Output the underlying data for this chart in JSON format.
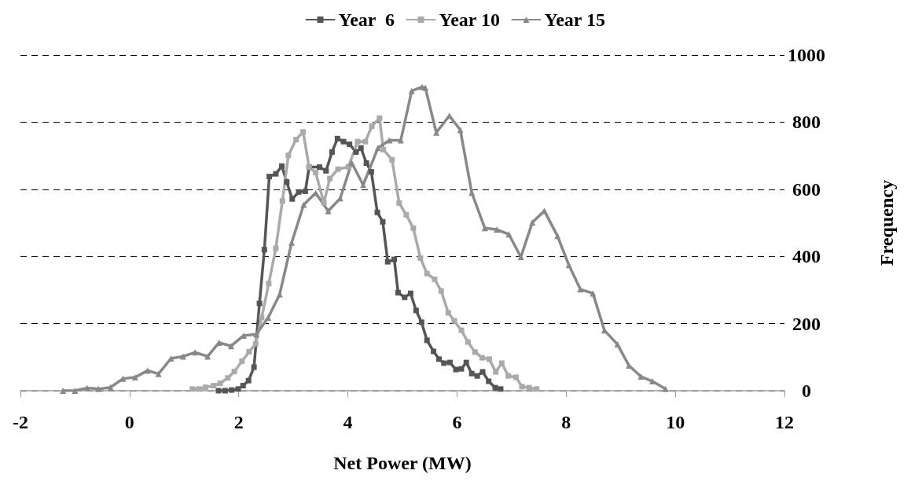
{
  "chart_data": {
    "type": "line",
    "xlabel": "Net Power (MW)",
    "ylabel": "Frequency",
    "xlim": [
      -2,
      12
    ],
    "xticks": [
      -2,
      0,
      2,
      4,
      6,
      8,
      10,
      12
    ],
    "ylim": [
      0,
      1000
    ],
    "yticks": [
      0,
      200,
      400,
      600,
      800,
      1000
    ],
    "grid": "y",
    "legend": "top",
    "line_style": "solid",
    "series": [
      {
        "name": "Year  6",
        "color": "#555555",
        "marker": "square",
        "x": [
          1.63,
          1.75,
          1.87,
          1.99,
          2.08,
          2.18,
          2.28,
          2.38,
          2.47,
          2.56,
          2.68,
          2.79,
          2.88,
          2.98,
          3.1,
          3.22,
          3.29,
          3.48,
          3.6,
          3.71,
          3.81,
          3.92,
          4.03,
          4.15,
          4.24,
          4.34,
          4.43,
          4.54,
          4.64,
          4.73,
          4.85,
          4.92,
          5.04,
          5.15,
          5.25,
          5.35,
          5.45,
          5.57,
          5.67,
          5.76,
          5.87,
          5.98,
          6.08,
          6.17,
          6.27,
          6.37,
          6.47,
          6.58,
          6.7,
          6.8
        ],
        "values": [
          0,
          0,
          2,
          5,
          15,
          30,
          70,
          260,
          420,
          638,
          646,
          669,
          622,
          571,
          592,
          594,
          666,
          666,
          655,
          711,
          751,
          742,
          734,
          711,
          723,
          678,
          652,
          531,
          503,
          384,
          391,
          292,
          278,
          290,
          239,
          204,
          150,
          117,
          94,
          82,
          84,
          63,
          65,
          84,
          51,
          44,
          56,
          28,
          9,
          5
        ]
      },
      {
        "name": "Year 10",
        "color": "#aaaaaa",
        "marker": "square",
        "x": [
          1.15,
          1.27,
          1.39,
          1.54,
          1.66,
          1.8,
          1.92,
          2.06,
          2.19,
          2.31,
          2.42,
          2.55,
          2.68,
          2.8,
          2.91,
          3.05,
          3.18,
          3.29,
          3.41,
          3.56,
          3.67,
          3.82,
          4.01,
          4.18,
          4.32,
          4.44,
          4.58,
          4.65,
          4.81,
          4.94,
          5.07,
          5.2,
          5.33,
          5.45,
          5.59,
          5.71,
          5.84,
          5.95,
          6.08,
          6.2,
          6.33,
          6.46,
          6.59,
          6.71,
          6.82,
          6.94,
          7.08,
          7.19,
          7.32,
          7.46
        ],
        "values": [
          5,
          5,
          10,
          15,
          22,
          38,
          57,
          88,
          116,
          139,
          218,
          319,
          424,
          565,
          701,
          748,
          771,
          666,
          650,
          560,
          632,
          660,
          667,
          742,
          742,
          788,
          812,
          718,
          688,
          559,
          524,
          484,
          395,
          349,
          332,
          297,
          232,
          208,
          180,
          145,
          115,
          98,
          94,
          56,
          82,
          44,
          40,
          12,
          9,
          5
        ]
      },
      {
        "name": "Year 15",
        "color": "#888888",
        "marker": "triangle",
        "x": [
          -1.22,
          -1.0,
          -0.78,
          -0.57,
          -0.35,
          -0.12,
          0.1,
          0.33,
          0.53,
          0.76,
          0.98,
          1.2,
          1.43,
          1.64,
          1.86,
          2.09,
          2.32,
          2.54,
          2.75,
          2.97,
          3.19,
          3.41,
          3.64,
          3.86,
          4.07,
          4.28,
          4.55,
          4.76,
          4.97,
          5.17,
          5.36,
          5.42,
          5.62,
          5.86,
          6.06,
          6.27,
          6.51,
          6.73,
          6.95,
          7.17,
          7.38,
          7.6,
          7.84,
          8.05,
          8.26,
          8.49,
          8.7,
          8.94,
          9.15,
          9.37,
          9.58,
          9.82
        ],
        "values": [
          0,
          0,
          8,
          5,
          10,
          36,
          40,
          60,
          50,
          96,
          102,
          114,
          102,
          143,
          133,
          164,
          168,
          218,
          287,
          441,
          554,
          589,
          535,
          573,
          679,
          613,
          723,
          746,
          746,
          893,
          905,
          902,
          769,
          819,
          777,
          590,
          484,
          480,
          466,
          398,
          501,
          536,
          461,
          374,
          302,
          290,
          180,
          138,
          75,
          42,
          28,
          5
        ]
      }
    ]
  }
}
